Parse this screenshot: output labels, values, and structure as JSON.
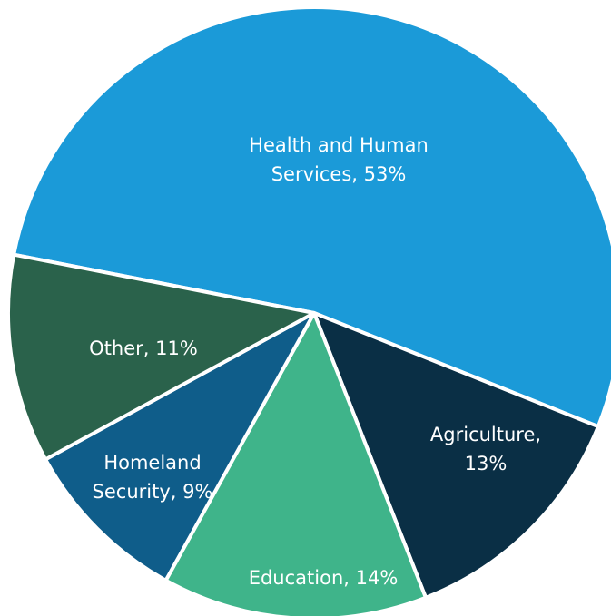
{
  "chart_data": {
    "type": "pie",
    "title": "",
    "slices": [
      {
        "label_lines": [
          "Health and Human",
          "Services, 53%"
        ],
        "name": "Health and Human Services",
        "value": 53,
        "color": "#1b9ad8"
      },
      {
        "label_lines": [
          "Agriculture,",
          "13%"
        ],
        "name": "Agriculture",
        "value": 13,
        "color": "#0a2f45"
      },
      {
        "label_lines": [
          "Education, 14%"
        ],
        "name": "Education",
        "value": 14,
        "color": "#3fb48a"
      },
      {
        "label_lines": [
          "Homeland",
          "Security, 9%"
        ],
        "name": "Homeland Security",
        "value": 9,
        "color": "#0f5d8a"
      },
      {
        "label_lines": [
          "Other, 11%"
        ],
        "name": "Other",
        "value": 11,
        "color": "#2a624b"
      }
    ],
    "legend": "none",
    "slice_border_color": "#ffffff"
  }
}
